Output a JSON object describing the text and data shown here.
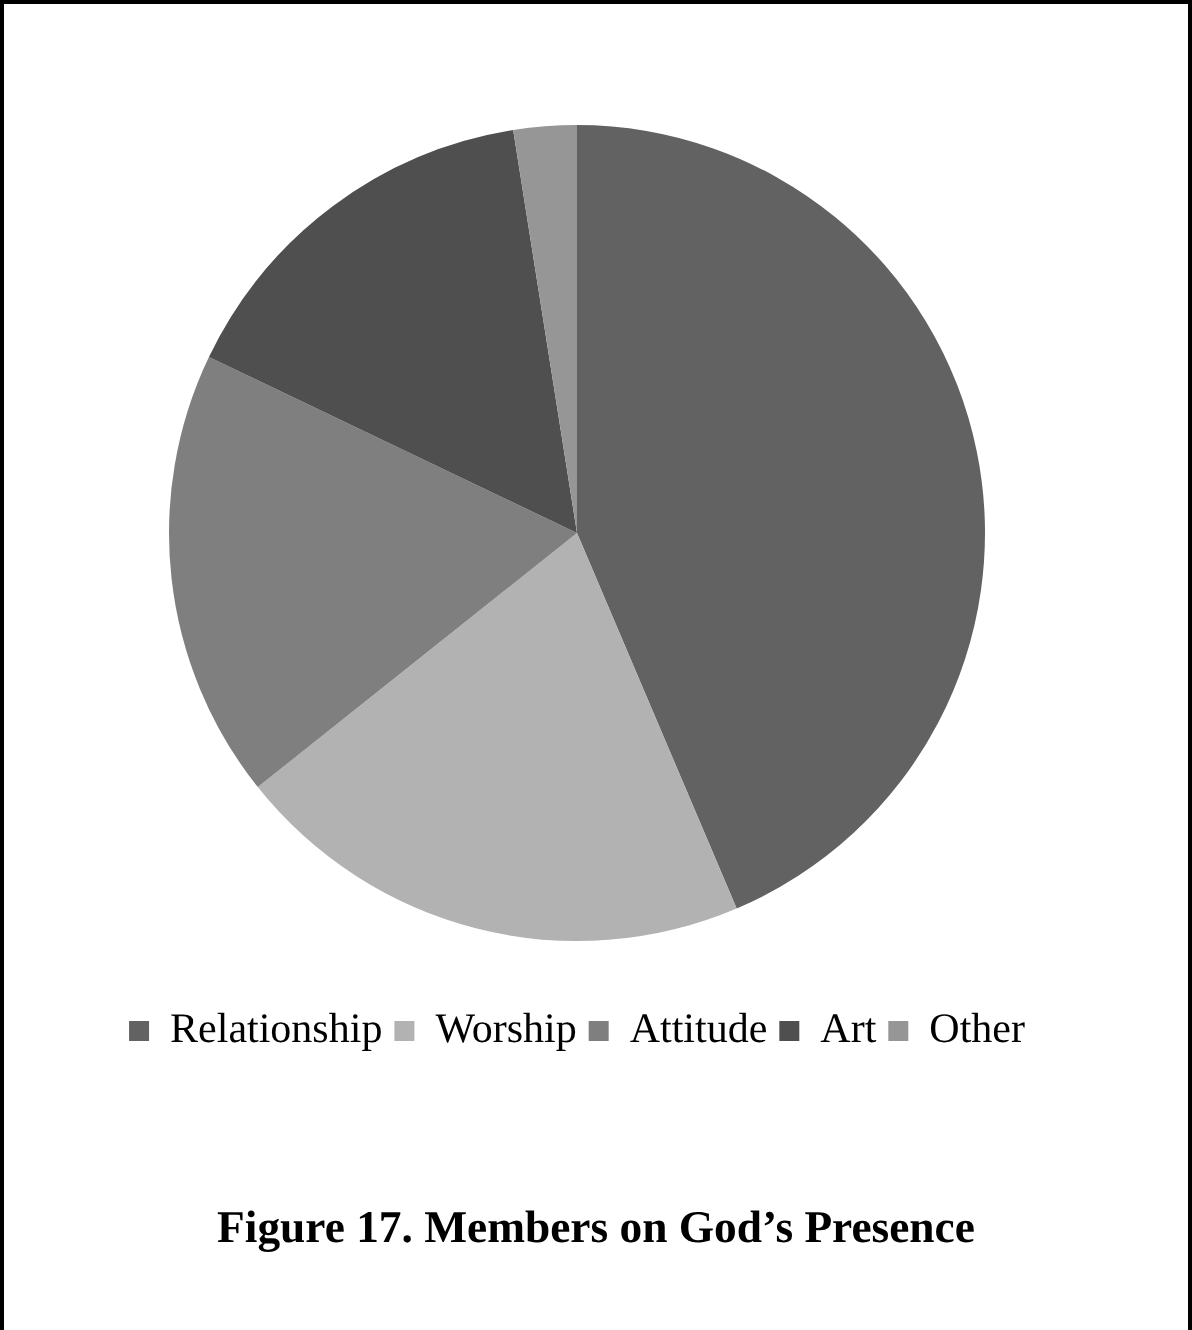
{
  "chart_data": {
    "type": "pie",
    "title": "Figure 17. Members on God’s Presence",
    "categories": [
      "Relationship",
      "Worship",
      "Attitude",
      "Art",
      "Other"
    ],
    "values": [
      43.6,
      20.7,
      17.8,
      15.4,
      2.5
    ],
    "colors": [
      "#626262",
      "#b2b2b2",
      "#7f7f7f",
      "#4f4f4f",
      "#969696"
    ],
    "legend": "bottom"
  }
}
